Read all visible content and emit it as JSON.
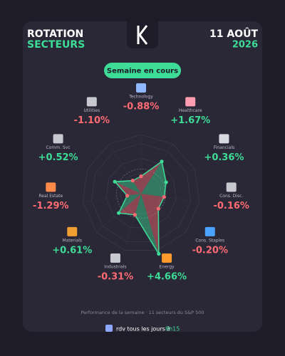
{
  "header": {
    "title_line1": "ROTATION",
    "title_line2": "SECTEURS",
    "date_line1": "11 AOÛT",
    "date_line2": "2026",
    "button": "Semaine en cours"
  },
  "chart_data": {
    "type": "radar",
    "categories": [
      "Technology",
      "Healthcare",
      "Financials",
      "Cons. Disc.",
      "Cons. Staples",
      "Energy",
      "Industrials",
      "Materials",
      "Real Estate",
      "Comm. Svc",
      "Utilities"
    ],
    "values": [
      -0.88,
      1.67,
      0.36,
      -0.16,
      -0.2,
      4.66,
      -0.31,
      0.61,
      -1.29,
      0.52,
      -1.1
    ],
    "value_labels": [
      "-0.88%",
      "+1.67%",
      "+0.36%",
      "-0.16%",
      "-0.20%",
      "+4.66%",
      "-0.31%",
      "+0.61%",
      "-1.29%",
      "+0.52%",
      "-1.10%"
    ],
    "rlim": [
      -3,
      5
    ],
    "colors": {
      "positive": "#3ddc97",
      "negative": "#ff6b72"
    }
  },
  "footer": {
    "note": "Performance de la semaine · 11 secteurs du S&P 500",
    "cta": "rdv tous les jours à",
    "time": "8h15"
  }
}
